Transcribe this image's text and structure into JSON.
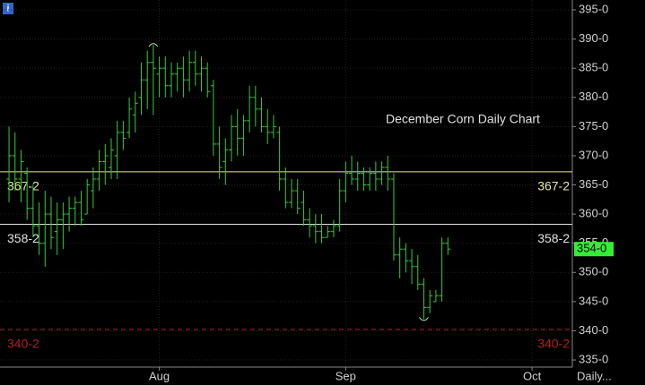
{
  "chart_data": {
    "type": "ohlc",
    "annotation": "December Corn Daily Chart",
    "interval_label": "Daily...",
    "color": "#33cc33",
    "x": [
      0,
      1,
      2,
      3,
      4,
      5,
      6,
      7,
      8,
      9,
      10,
      11,
      12,
      13,
      14,
      15,
      16,
      17,
      18,
      19,
      20,
      21,
      22,
      23,
      24,
      25,
      26,
      27,
      28,
      29,
      30,
      31,
      32,
      33,
      34,
      35,
      36,
      37,
      38,
      39,
      40,
      41,
      42,
      43,
      44,
      45,
      46,
      47,
      48,
      49,
      50,
      51,
      52,
      53,
      54,
      55,
      56,
      57,
      58,
      59,
      60,
      61,
      62,
      63,
      64,
      65,
      66,
      67,
      68,
      69,
      70,
      71,
      72,
      73
    ],
    "open": [
      366,
      370,
      366,
      367,
      361,
      358,
      355,
      360,
      357,
      359,
      360,
      361,
      362,
      360,
      364,
      366,
      369,
      368,
      370,
      374,
      374,
      377,
      380,
      383,
      386,
      384,
      385,
      382,
      384,
      385,
      383,
      386,
      384,
      385,
      382,
      372,
      369,
      371,
      375,
      373,
      376,
      380,
      378,
      375,
      374,
      374,
      366,
      362,
      364,
      362,
      359,
      358,
      357,
      356,
      357,
      358,
      364,
      367,
      366,
      367,
      365,
      367,
      366,
      368,
      366,
      353,
      354,
      352,
      351,
      348,
      344,
      345,
      346,
      355
    ],
    "high": [
      375,
      374,
      371,
      368,
      365,
      362,
      364,
      363,
      362,
      362,
      363,
      363,
      364,
      366,
      368,
      371,
      372,
      373,
      376,
      376,
      380,
      381,
      386,
      388,
      389,
      387,
      387,
      386,
      386,
      387,
      388,
      388,
      387,
      386,
      383,
      375,
      373,
      377,
      378,
      377,
      382,
      382,
      380,
      378,
      377,
      375,
      368,
      366,
      366,
      364,
      361,
      360,
      360,
      358,
      359,
      366,
      369,
      370,
      369,
      368,
      368,
      369,
      369,
      370,
      367,
      356,
      355,
      354,
      353,
      349,
      347,
      347,
      356,
      356
    ],
    "low": [
      362,
      364,
      362,
      359,
      356,
      353,
      351,
      354,
      353,
      354,
      357,
      358,
      358,
      360,
      361,
      364,
      365,
      366,
      366,
      371,
      373,
      374,
      377,
      378,
      377,
      380,
      380,
      380,
      381,
      380,
      381,
      382,
      381,
      380,
      370,
      366,
      365,
      369,
      370,
      370,
      374,
      375,
      374,
      372,
      373,
      364,
      361,
      361,
      360,
      358,
      356,
      355,
      355,
      356,
      356,
      357,
      362,
      365,
      364,
      364,
      364,
      364,
      365,
      364,
      352,
      349,
      350,
      348,
      347,
      342,
      343,
      345,
      345,
      353
    ],
    "close": [
      370,
      366,
      369,
      361,
      358,
      355,
      360,
      356,
      359,
      360,
      361,
      362,
      359,
      365,
      366,
      369,
      370,
      371,
      374,
      373,
      378,
      379,
      383,
      386,
      385,
      385,
      382,
      384,
      385,
      383,
      386,
      384,
      385,
      381,
      372,
      368,
      371,
      375,
      373,
      376,
      380,
      378,
      375,
      374,
      375,
      366,
      362,
      364,
      361,
      359,
      358,
      357,
      356,
      357,
      358,
      364,
      367,
      366,
      367,
      365,
      367,
      366,
      368,
      366,
      353,
      354,
      352,
      351,
      348,
      344,
      346,
      346,
      355,
      354
    ],
    "xlim": [
      -1.5,
      93.7
    ],
    "xticks": [
      {
        "value": 25,
        "label": "Aug"
      },
      {
        "value": 56,
        "label": "Sep"
      },
      {
        "value": 87,
        "label": "Oct"
      }
    ],
    "ylim": [
      333.78,
      396.69
    ],
    "yticks": [
      {
        "value": 335,
        "label": "335-0"
      },
      {
        "value": 340,
        "label": "340-0"
      },
      {
        "value": 345,
        "label": "345-0"
      },
      {
        "value": 350,
        "label": "350-0"
      },
      {
        "value": 355,
        "label": "355-0"
      },
      {
        "value": 360,
        "label": "360-0"
      },
      {
        "value": 365,
        "label": "365-0"
      },
      {
        "value": 370,
        "label": "370-0"
      },
      {
        "value": 375,
        "label": "375-0"
      },
      {
        "value": 380,
        "label": "380-0"
      },
      {
        "value": 385,
        "label": "385-0"
      },
      {
        "value": 390,
        "label": "390-0"
      },
      {
        "value": 395,
        "label": "395-0"
      }
    ],
    "grid": true,
    "horizontal_lines": [
      {
        "value": 367.25,
        "label": "367-2",
        "color": "#e8e8a0",
        "dashed": false
      },
      {
        "value": 358.25,
        "label": "358-2",
        "color": "#e0e0e0",
        "dashed": false
      },
      {
        "value": 340.25,
        "label": "340-2",
        "color": "#b02020",
        "dashed": true
      }
    ],
    "last_price": {
      "value": 354,
      "label": "354-0"
    }
  }
}
